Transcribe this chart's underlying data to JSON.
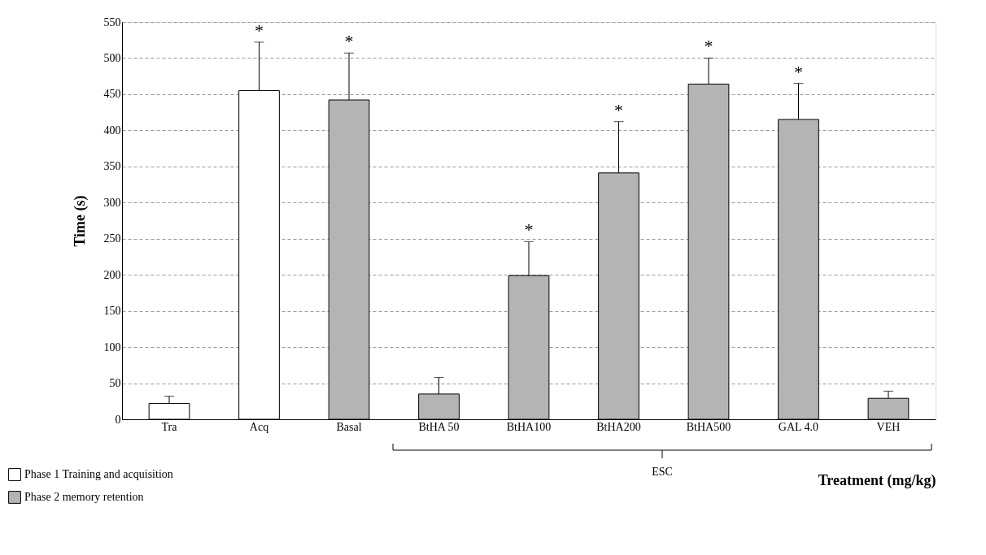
{
  "chart_data": {
    "type": "bar",
    "xlabel": "Treatment (mg/kg)",
    "ylabel": "Time  (s)",
    "categories": [
      "Tra",
      "Acq",
      "Basal",
      "BtHA 50",
      "BtHA100",
      "BtHA200",
      "BtHA500",
      "GAL 4.0",
      "VEH"
    ],
    "series": [
      {
        "name": "Phase 1 Training and acquisition",
        "color": "#ffffff",
        "values": [
          22,
          455,
          null,
          null,
          null,
          null,
          null,
          null,
          null
        ],
        "errors": [
          [
            22,
            32
          ],
          [
            455,
            522
          ],
          null,
          null,
          null,
          null,
          null,
          null,
          null
        ]
      },
      {
        "name": "Phase 2  memory retention",
        "color": "#b4b4b4",
        "values": [
          null,
          null,
          442,
          35,
          199,
          341,
          464,
          415,
          29
        ],
        "errors": [
          null,
          null,
          [
            442,
            507
          ],
          [
            35,
            58
          ],
          [
            199,
            246
          ],
          [
            341,
            412
          ],
          [
            464,
            500
          ],
          [
            415,
            465
          ],
          [
            29,
            39
          ]
        ]
      }
    ],
    "ylim": [
      0,
      550
    ],
    "yticks": [
      0,
      50,
      100,
      150,
      200,
      250,
      300,
      350,
      400,
      450,
      500,
      550
    ],
    "grid": "y",
    "legend": "bottom left",
    "annotations": [
      {
        "text": "*",
        "x": "Acq",
        "y": 522
      },
      {
        "text": "*",
        "x": "Basal",
        "y": 507
      },
      {
        "text": "*",
        "x": "BtHA100",
        "y": 246
      },
      {
        "text": "*",
        "x": "BtHA200",
        "y": 412
      },
      {
        "text": "*",
        "x": "BtHA500",
        "y": 500
      },
      {
        "text": "*",
        "x": "GAL 4.0",
        "y": 465
      },
      "ESC"
    ]
  }
}
